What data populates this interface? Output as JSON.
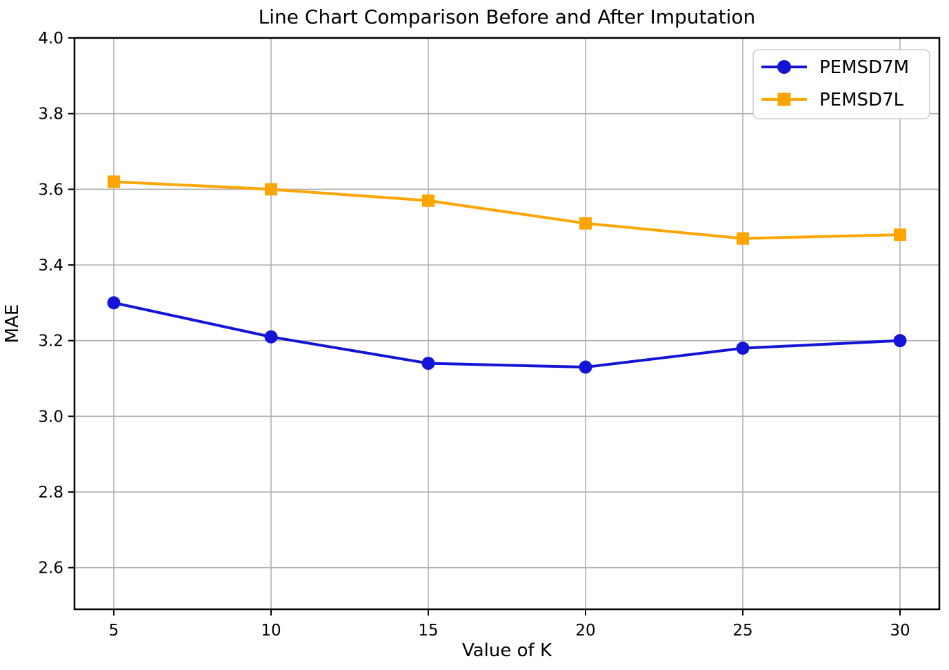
{
  "chart_data": {
    "type": "line",
    "title": "Line Chart Comparison Before and After Imputation",
    "xlabel": "Value of K",
    "ylabel": "MAE",
    "x": [
      5,
      10,
      15,
      20,
      25,
      30
    ],
    "series": [
      {
        "name": "PEMSD7M",
        "values": [
          3.3,
          3.21,
          3.14,
          3.13,
          3.18,
          3.2
        ],
        "color": "#1414d6",
        "marker": "circle"
      },
      {
        "name": "PEMSD7L",
        "values": [
          3.62,
          3.6,
          3.57,
          3.51,
          3.47,
          3.48
        ],
        "color": "#ffa500",
        "marker": "square"
      }
    ],
    "xticks": [
      5,
      10,
      15,
      20,
      25,
      30
    ],
    "xtick_labels": [
      "5",
      "10",
      "15",
      "20",
      "25",
      "30"
    ],
    "yticks": [
      2.6,
      2.8,
      3.0,
      3.2,
      3.4,
      3.6,
      3.8,
      4.0
    ],
    "ytick_labels": [
      "2.6",
      "2.8",
      "3.0",
      "3.2",
      "3.4",
      "3.6",
      "3.8",
      "4.0"
    ],
    "xlim": [
      3.75,
      31.25
    ],
    "ylim": [
      2.49,
      4.0
    ],
    "grid": true,
    "legend_position": "upper right",
    "colors": {
      "background": "#ffffff",
      "grid": "#b0b0b0",
      "axis": "#000000",
      "text": "#000000",
      "legend_border": "#cccccc",
      "legend_background": "#ffffff"
    }
  }
}
